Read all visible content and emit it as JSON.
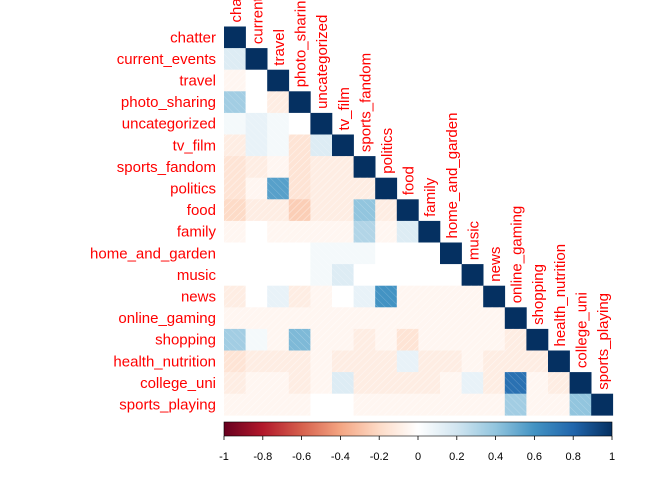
{
  "chart_data": {
    "type": "heatmap",
    "subtype": "correlation-matrix-lower-triangle",
    "variables": [
      "chatter",
      "current_events",
      "travel",
      "photo_sharing",
      "uncategorized",
      "tv_film",
      "sports_fandom",
      "politics",
      "food",
      "family",
      "home_and_garden",
      "music",
      "news",
      "online_gaming",
      "shopping",
      "health_nutrition",
      "college_uni",
      "sports_playing"
    ],
    "lower_triangle": [
      [
        1
      ],
      [
        0.15,
        1
      ],
      [
        -0.05,
        0.0,
        1
      ],
      [
        0.35,
        0.0,
        -0.1,
        1
      ],
      [
        0.05,
        0.1,
        0.05,
        0.0,
        1
      ],
      [
        -0.1,
        0.1,
        0.05,
        -0.15,
        0.15,
        1
      ],
      [
        -0.15,
        -0.1,
        -0.05,
        -0.15,
        -0.1,
        -0.1,
        1
      ],
      [
        -0.15,
        -0.05,
        0.55,
        -0.15,
        -0.1,
        -0.1,
        -0.1,
        1
      ],
      [
        -0.2,
        -0.1,
        -0.1,
        -0.25,
        -0.1,
        -0.1,
        0.4,
        -0.1,
        1
      ],
      [
        -0.05,
        0.0,
        -0.05,
        -0.05,
        -0.05,
        -0.05,
        0.3,
        -0.05,
        0.15,
        1
      ],
      [
        0.0,
        0.0,
        0.0,
        0.0,
        0.05,
        0.05,
        0.05,
        0.0,
        0.0,
        0.0,
        1
      ],
      [
        0.0,
        0.0,
        0.0,
        0.0,
        0.05,
        0.15,
        0.0,
        0.0,
        0.0,
        0.0,
        0.0,
        1
      ],
      [
        -0.1,
        0.0,
        0.1,
        -0.1,
        -0.05,
        0.0,
        0.1,
        0.6,
        -0.05,
        -0.05,
        -0.05,
        -0.05,
        1
      ],
      [
        -0.05,
        -0.05,
        -0.05,
        -0.05,
        -0.05,
        -0.05,
        -0.05,
        -0.05,
        -0.05,
        -0.05,
        -0.05,
        -0.05,
        -0.05,
        1
      ],
      [
        0.35,
        0.05,
        -0.05,
        0.45,
        -0.05,
        -0.05,
        -0.1,
        -0.05,
        -0.15,
        -0.05,
        -0.05,
        -0.05,
        -0.05,
        -0.1,
        1
      ],
      [
        -0.15,
        -0.1,
        -0.1,
        -0.1,
        -0.05,
        -0.1,
        -0.1,
        -0.1,
        0.1,
        -0.1,
        -0.1,
        -0.05,
        -0.1,
        -0.1,
        -0.1,
        1
      ],
      [
        -0.1,
        -0.05,
        -0.05,
        -0.1,
        -0.05,
        0.15,
        -0.1,
        -0.1,
        -0.1,
        -0.1,
        -0.05,
        0.1,
        -0.1,
        0.75,
        -0.05,
        -0.1,
        1
      ],
      [
        -0.05,
        -0.05,
        -0.05,
        -0.05,
        0.0,
        0.0,
        -0.05,
        -0.05,
        -0.05,
        -0.05,
        -0.05,
        -0.05,
        -0.05,
        0.35,
        -0.05,
        -0.05,
        0.4,
        1
      ]
    ],
    "colorbar": {
      "range": [
        -1,
        1
      ],
      "tick_labels": [
        "-1",
        "-0.8",
        "-0.6",
        "-0.4",
        "-0.2",
        "0",
        "0.2",
        "0.4",
        "0.6",
        "0.8",
        "1"
      ],
      "colors": [
        "#67001f",
        "#b2182b",
        "#d6604d",
        "#f4a582",
        "#fddbc7",
        "#ffffff",
        "#d1e5f0",
        "#92c5de",
        "#4393c3",
        "#2166ac",
        "#053061"
      ]
    },
    "label_color": "#ff0000"
  }
}
